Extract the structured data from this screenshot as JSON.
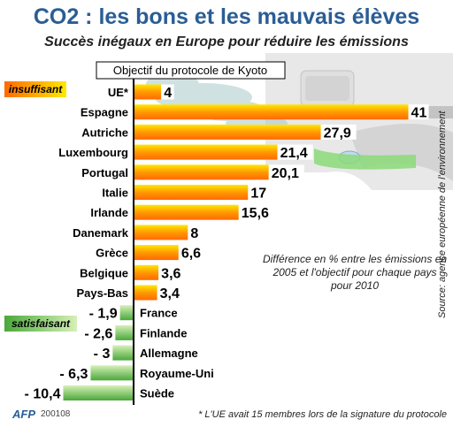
{
  "title": "CO2 : les bons et les mauvais élèves",
  "subtitle": "Succès inégaux en Europe pour réduire les émissions",
  "kyoto_label": "Objectif du protocole de Kyoto",
  "group_labels": {
    "bad": "insuffisant",
    "good": "satisfaisant"
  },
  "note": "Différence en % entre les émissions en 2005 et l'objectif pour chaque pays pour 2010",
  "source": "Source: agence européenne de l'environnement",
  "footnote": "* L'UE avait 15 membres lors de la signature du protocole",
  "credit": "AFP",
  "credit_date": "200108",
  "colors": {
    "title": "#2a5d95",
    "bar_hot": "#ff6a00",
    "bar_warm": "#ffe800",
    "bar_good_dark": "#4aa83a",
    "bar_good_light": "#d6f0b8",
    "axis": "#000000"
  },
  "chart_data": {
    "type": "bar",
    "orientation": "horizontal",
    "categories": [
      "UE*",
      "Espagne",
      "Autriche",
      "Luxembourg",
      "Portugal",
      "Italie",
      "Irlande",
      "Danemark",
      "Grèce",
      "Belgique",
      "Pays-Bas",
      "France",
      "Finlande",
      "Allemagne",
      "Royaume-Uni",
      "Suède"
    ],
    "values": [
      4,
      41,
      27.9,
      21.4,
      20.1,
      17,
      15.6,
      8,
      6.6,
      3.6,
      3.4,
      -1.9,
      -2.6,
      -3,
      -6.3,
      -10.4
    ],
    "value_labels": [
      "4",
      "41",
      "27,9",
      "21,4",
      "20,1",
      "17",
      "15,6",
      "8",
      "6,6",
      "3,6",
      "3,4",
      "- 1,9",
      "- 2,6",
      "- 3",
      "- 6,3",
      "- 10,4"
    ],
    "xlabel": "",
    "ylabel": "",
    "baseline": 0,
    "grid": false
  }
}
